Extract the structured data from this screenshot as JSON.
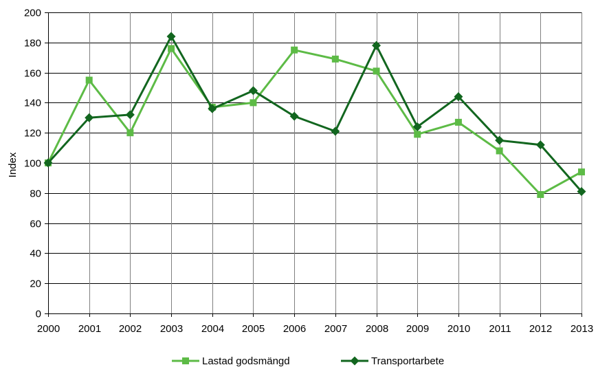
{
  "chart_data": {
    "type": "line",
    "title": "",
    "xlabel": "",
    "ylabel": "Index",
    "categories": [
      "2000",
      "2001",
      "2002",
      "2003",
      "2004",
      "2005",
      "2006",
      "2007",
      "2008",
      "2009",
      "2010",
      "2011",
      "2012",
      "2013"
    ],
    "yticks": [
      "0",
      "20",
      "40",
      "60",
      "80",
      "100",
      "120",
      "140",
      "160",
      "180",
      "200"
    ],
    "ylim": [
      0,
      200
    ],
    "grid": true,
    "legend_position": "bottom",
    "series": [
      {
        "name": "Lastad godsmängd",
        "color": "#5dbb46",
        "marker": "square",
        "values": [
          100,
          155,
          120,
          176,
          137,
          140,
          175,
          169,
          161,
          119,
          127,
          108,
          79,
          94
        ]
      },
      {
        "name": "Transportarbete",
        "color": "#12661f",
        "marker": "diamond",
        "values": [
          100,
          130,
          132,
          184,
          136,
          148,
          131,
          121,
          178,
          124,
          144,
          115,
          112,
          81
        ]
      }
    ]
  }
}
